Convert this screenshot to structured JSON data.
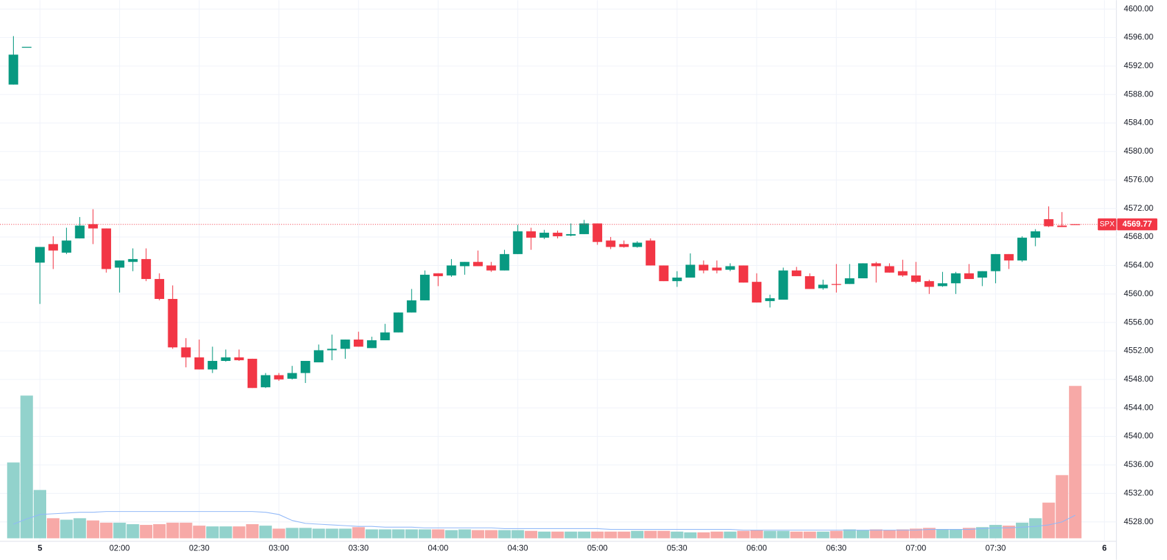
{
  "chart_data": {
    "type": "candlestick",
    "symbol": "SPX",
    "last_price": 4569.77,
    "up_color": "#089981",
    "down_color": "#f23645",
    "volume_up_color": "#92d2cc",
    "volume_down_color": "#f7a9a7",
    "volume_ma_color": "#90b8f8",
    "grid": true,
    "x": [
      0,
      1,
      2,
      3,
      4,
      5,
      6,
      7,
      8,
      9,
      10,
      11,
      12,
      13,
      14,
      15,
      16,
      17,
      18,
      19,
      20,
      21,
      22,
      23,
      24,
      25,
      26,
      27,
      28,
      29,
      30,
      31,
      32,
      33,
      34,
      35,
      36,
      37,
      38,
      39,
      40,
      41,
      42,
      43,
      44,
      45,
      46,
      47,
      48,
      49,
      50,
      51,
      52,
      53,
      54,
      55,
      56,
      57,
      58,
      59,
      60,
      61,
      62,
      63,
      64,
      65,
      66,
      67,
      68,
      69,
      70,
      71,
      72,
      73,
      74,
      75,
      76,
      77,
      78,
      79,
      80
    ],
    "open": [
      4589.4,
      4594.7,
      4564.4,
      4567.0,
      4565.8,
      4567.8,
      4569.8,
      4569.2,
      4563.7,
      4564.5,
      4564.9,
      4562.1,
      4559.3,
      4552.5,
      4551.1,
      4549.4,
      4550.6,
      4551.1,
      4550.9,
      4546.9,
      4548.6,
      4548.1,
      4548.9,
      4550.4,
      4552.1,
      4552.3,
      4553.6,
      4552.4,
      4553.5,
      4554.6,
      4557.4,
      4559.1,
      4562.9,
      4562.6,
      4563.9,
      4564.5,
      4564.0,
      4563.3,
      4565.6,
      4568.8,
      4567.9,
      4568.6,
      4568.2,
      4568.4,
      4569.9,
      4567.5,
      4567.0,
      4566.6,
      4567.5,
      4564.0,
      4561.8,
      4562.3,
      4564.1,
      4563.7,
      4563.4,
      4564.0,
      4561.7,
      4559.0,
      4559.2,
      4563.3,
      4562.5,
      4560.8,
      4561.4,
      4561.4,
      4562.2,
      4564.3,
      4563.9,
      4563.2,
      4562.6,
      4561.8,
      4561.1,
      4561.5,
      4562.9,
      4562.3,
      4563.2,
      4565.6,
      4564.7,
      4567.9,
      4570.5,
      4569.6,
      4569.8
    ],
    "high": [
      4596.2,
      4594.7,
      4566.6,
      4568.1,
      4569.3,
      4570.8,
      4571.9,
      4569.2,
      4564.7,
      4566.4,
      4566.4,
      4562.9,
      4561.2,
      4553.8,
      4553.6,
      4552.6,
      4552.2,
      4552.2,
      4550.9,
      4548.9,
      4548.9,
      4549.9,
      4550.6,
      4552.9,
      4554.3,
      4553.6,
      4554.7,
      4554.0,
      4555.8,
      4557.4,
      4560.7,
      4563.3,
      4562.9,
      4564.9,
      4564.5,
      4566.1,
      4564.5,
      4566.2,
      4569.7,
      4569.3,
      4569.0,
      4568.9,
      4569.9,
      4570.4,
      4569.9,
      4568.0,
      4567.5,
      4567.4,
      4567.8,
      4564.0,
      4563.2,
      4565.7,
      4564.7,
      4564.7,
      4564.3,
      4564.0,
      4562.9,
      4559.9,
      4563.7,
      4563.8,
      4562.9,
      4562.0,
      4564.2,
      4564.2,
      4564.3,
      4564.5,
      4564.3,
      4564.8,
      4564.5,
      4562.0,
      4563.1,
      4563.1,
      4564.2,
      4563.2,
      4565.6,
      4565.6,
      4568.1,
      4569.1,
      4572.3,
      4571.5,
      4569.8
    ],
    "low": [
      4589.4,
      4594.7,
      4558.6,
      4563.5,
      4565.6,
      4567.8,
      4567.0,
      4563.0,
      4560.2,
      4563.2,
      4561.8,
      4559.1,
      4552.3,
      4549.7,
      4549.4,
      4548.9,
      4550.5,
      4550.6,
      4546.8,
      4546.8,
      4547.8,
      4548.0,
      4547.5,
      4550.4,
      4550.7,
      4550.9,
      4552.6,
      4552.4,
      4553.5,
      4554.6,
      4557.4,
      4559.1,
      4561.1,
      4562.4,
      4562.7,
      4563.9,
      4563.1,
      4563.3,
      4565.6,
      4566.2,
      4567.7,
      4567.8,
      4568.1,
      4568.4,
      4566.9,
      4566.3,
      4566.5,
      4566.5,
      4564.0,
      4561.8,
      4561.0,
      4562.3,
      4562.9,
      4562.9,
      4563.2,
      4561.6,
      4558.8,
      4558.1,
      4559.2,
      4562.5,
      4560.7,
      4560.6,
      4560.2,
      4561.4,
      4562.2,
      4561.6,
      4563.0,
      4562.4,
      4561.5,
      4560.0,
      4561.0,
      4560.0,
      4562.1,
      4561.1,
      4561.5,
      4563.5,
      4564.5,
      4566.7,
      4569.4,
      4569.4,
      4569.7
    ],
    "close": [
      4593.6,
      4594.7,
      4566.6,
      4566.1,
      4567.5,
      4569.6,
      4569.2,
      4563.5,
      4564.7,
      4564.9,
      4562.1,
      4559.3,
      4552.5,
      4551.1,
      4549.4,
      4550.6,
      4551.1,
      4550.7,
      4546.8,
      4548.6,
      4548.0,
      4548.9,
      4550.6,
      4552.1,
      4552.3,
      4553.6,
      4552.6,
      4553.5,
      4554.6,
      4557.4,
      4559.1,
      4562.7,
      4562.5,
      4564.0,
      4564.5,
      4563.9,
      4563.3,
      4565.6,
      4568.8,
      4567.9,
      4568.6,
      4568.1,
      4568.4,
      4569.9,
      4567.3,
      4566.6,
      4566.6,
      4567.2,
      4564.0,
      4561.8,
      4562.3,
      4564.1,
      4563.3,
      4563.3,
      4563.9,
      4561.6,
      4558.8,
      4559.4,
      4563.3,
      4562.5,
      4560.7,
      4561.3,
      4561.3,
      4562.2,
      4564.3,
      4563.9,
      4563.0,
      4562.6,
      4561.7,
      4561.0,
      4561.5,
      4562.9,
      4562.1,
      4563.2,
      4565.6,
      4564.7,
      4567.9,
      4568.8,
      4569.5,
      4569.4,
      4569.77
    ],
    "volume": [
      102,
      192,
      65,
      27,
      25,
      27,
      24,
      21,
      21,
      19,
      18,
      19,
      21,
      21,
      17,
      16,
      16,
      16,
      19,
      17,
      13,
      14,
      14,
      13,
      13,
      13,
      15,
      12,
      12,
      12,
      12,
      12,
      12,
      11,
      12,
      11,
      11,
      11,
      11,
      10,
      9,
      9,
      9,
      9,
      9,
      9,
      9,
      10,
      10,
      10,
      9,
      8,
      8,
      9,
      9,
      10,
      11,
      10,
      10,
      9,
      9,
      9,
      10,
      12,
      11,
      12,
      11,
      12,
      13,
      14,
      12,
      12,
      14,
      15,
      18,
      17,
      21,
      27,
      48,
      85,
      205
    ],
    "volume_ma": [
      19,
      26,
      32,
      33,
      34,
      35,
      35,
      36,
      36,
      36,
      36,
      36,
      36,
      36,
      36,
      36,
      36,
      36,
      36,
      35,
      32,
      24,
      20,
      19,
      18,
      17,
      16,
      16,
      15,
      15,
      15,
      14,
      14,
      14,
      14,
      14,
      14,
      13,
      13,
      13,
      13,
      13,
      13,
      13,
      13,
      12,
      12,
      12,
      12,
      12,
      12,
      12,
      12,
      12,
      12,
      11,
      11,
      11,
      11,
      11,
      11,
      11,
      11,
      11,
      11,
      11,
      11,
      11,
      11,
      12,
      12,
      12,
      12,
      13,
      14,
      14,
      15,
      16,
      18,
      22,
      31
    ],
    "xlim": [
      -1.01,
      83.1
    ],
    "ylim": [
      4525.28,
      4601.25
    ],
    "yticks": [
      {
        "value": 4600,
        "label": "4600.00"
      },
      {
        "value": 4596,
        "label": "4596.00"
      },
      {
        "value": 4592,
        "label": "4592.00"
      },
      {
        "value": 4588,
        "label": "4588.00"
      },
      {
        "value": 4584,
        "label": "4584.00"
      },
      {
        "value": 4580,
        "label": "4580.00"
      },
      {
        "value": 4576,
        "label": "4576.00"
      },
      {
        "value": 4572,
        "label": "4572.00"
      },
      {
        "value": 4568,
        "label": "4568.00"
      },
      {
        "value": 4564,
        "label": "4564.00"
      },
      {
        "value": 4560,
        "label": "4560.00"
      },
      {
        "value": 4556,
        "label": "4556.00"
      },
      {
        "value": 4552,
        "label": "4552.00"
      },
      {
        "value": 4548,
        "label": "4548.00"
      },
      {
        "value": 4544,
        "label": "4544.00"
      },
      {
        "value": 4540,
        "label": "4540.00"
      },
      {
        "value": 4536,
        "label": "4536.00"
      },
      {
        "value": 4532,
        "label": "4532.00"
      },
      {
        "value": 4528,
        "label": "4528.00"
      }
    ],
    "xticks": [
      {
        "value": 2,
        "label": "5"
      },
      {
        "value": 8,
        "label": "02:00"
      },
      {
        "value": 14,
        "label": "02:30"
      },
      {
        "value": 20,
        "label": "03:00"
      },
      {
        "value": 26,
        "label": "03:30"
      },
      {
        "value": 32,
        "label": "04:00"
      },
      {
        "value": 38,
        "label": "04:30"
      },
      {
        "value": 44,
        "label": "05:00"
      },
      {
        "value": 50,
        "label": "05:30"
      },
      {
        "value": 56,
        "label": "06:00"
      },
      {
        "value": 62,
        "label": "06:30"
      },
      {
        "value": 68,
        "label": "07:00"
      },
      {
        "value": 74,
        "label": "07:30"
      },
      {
        "value": 82.2,
        "label": "6"
      }
    ]
  }
}
